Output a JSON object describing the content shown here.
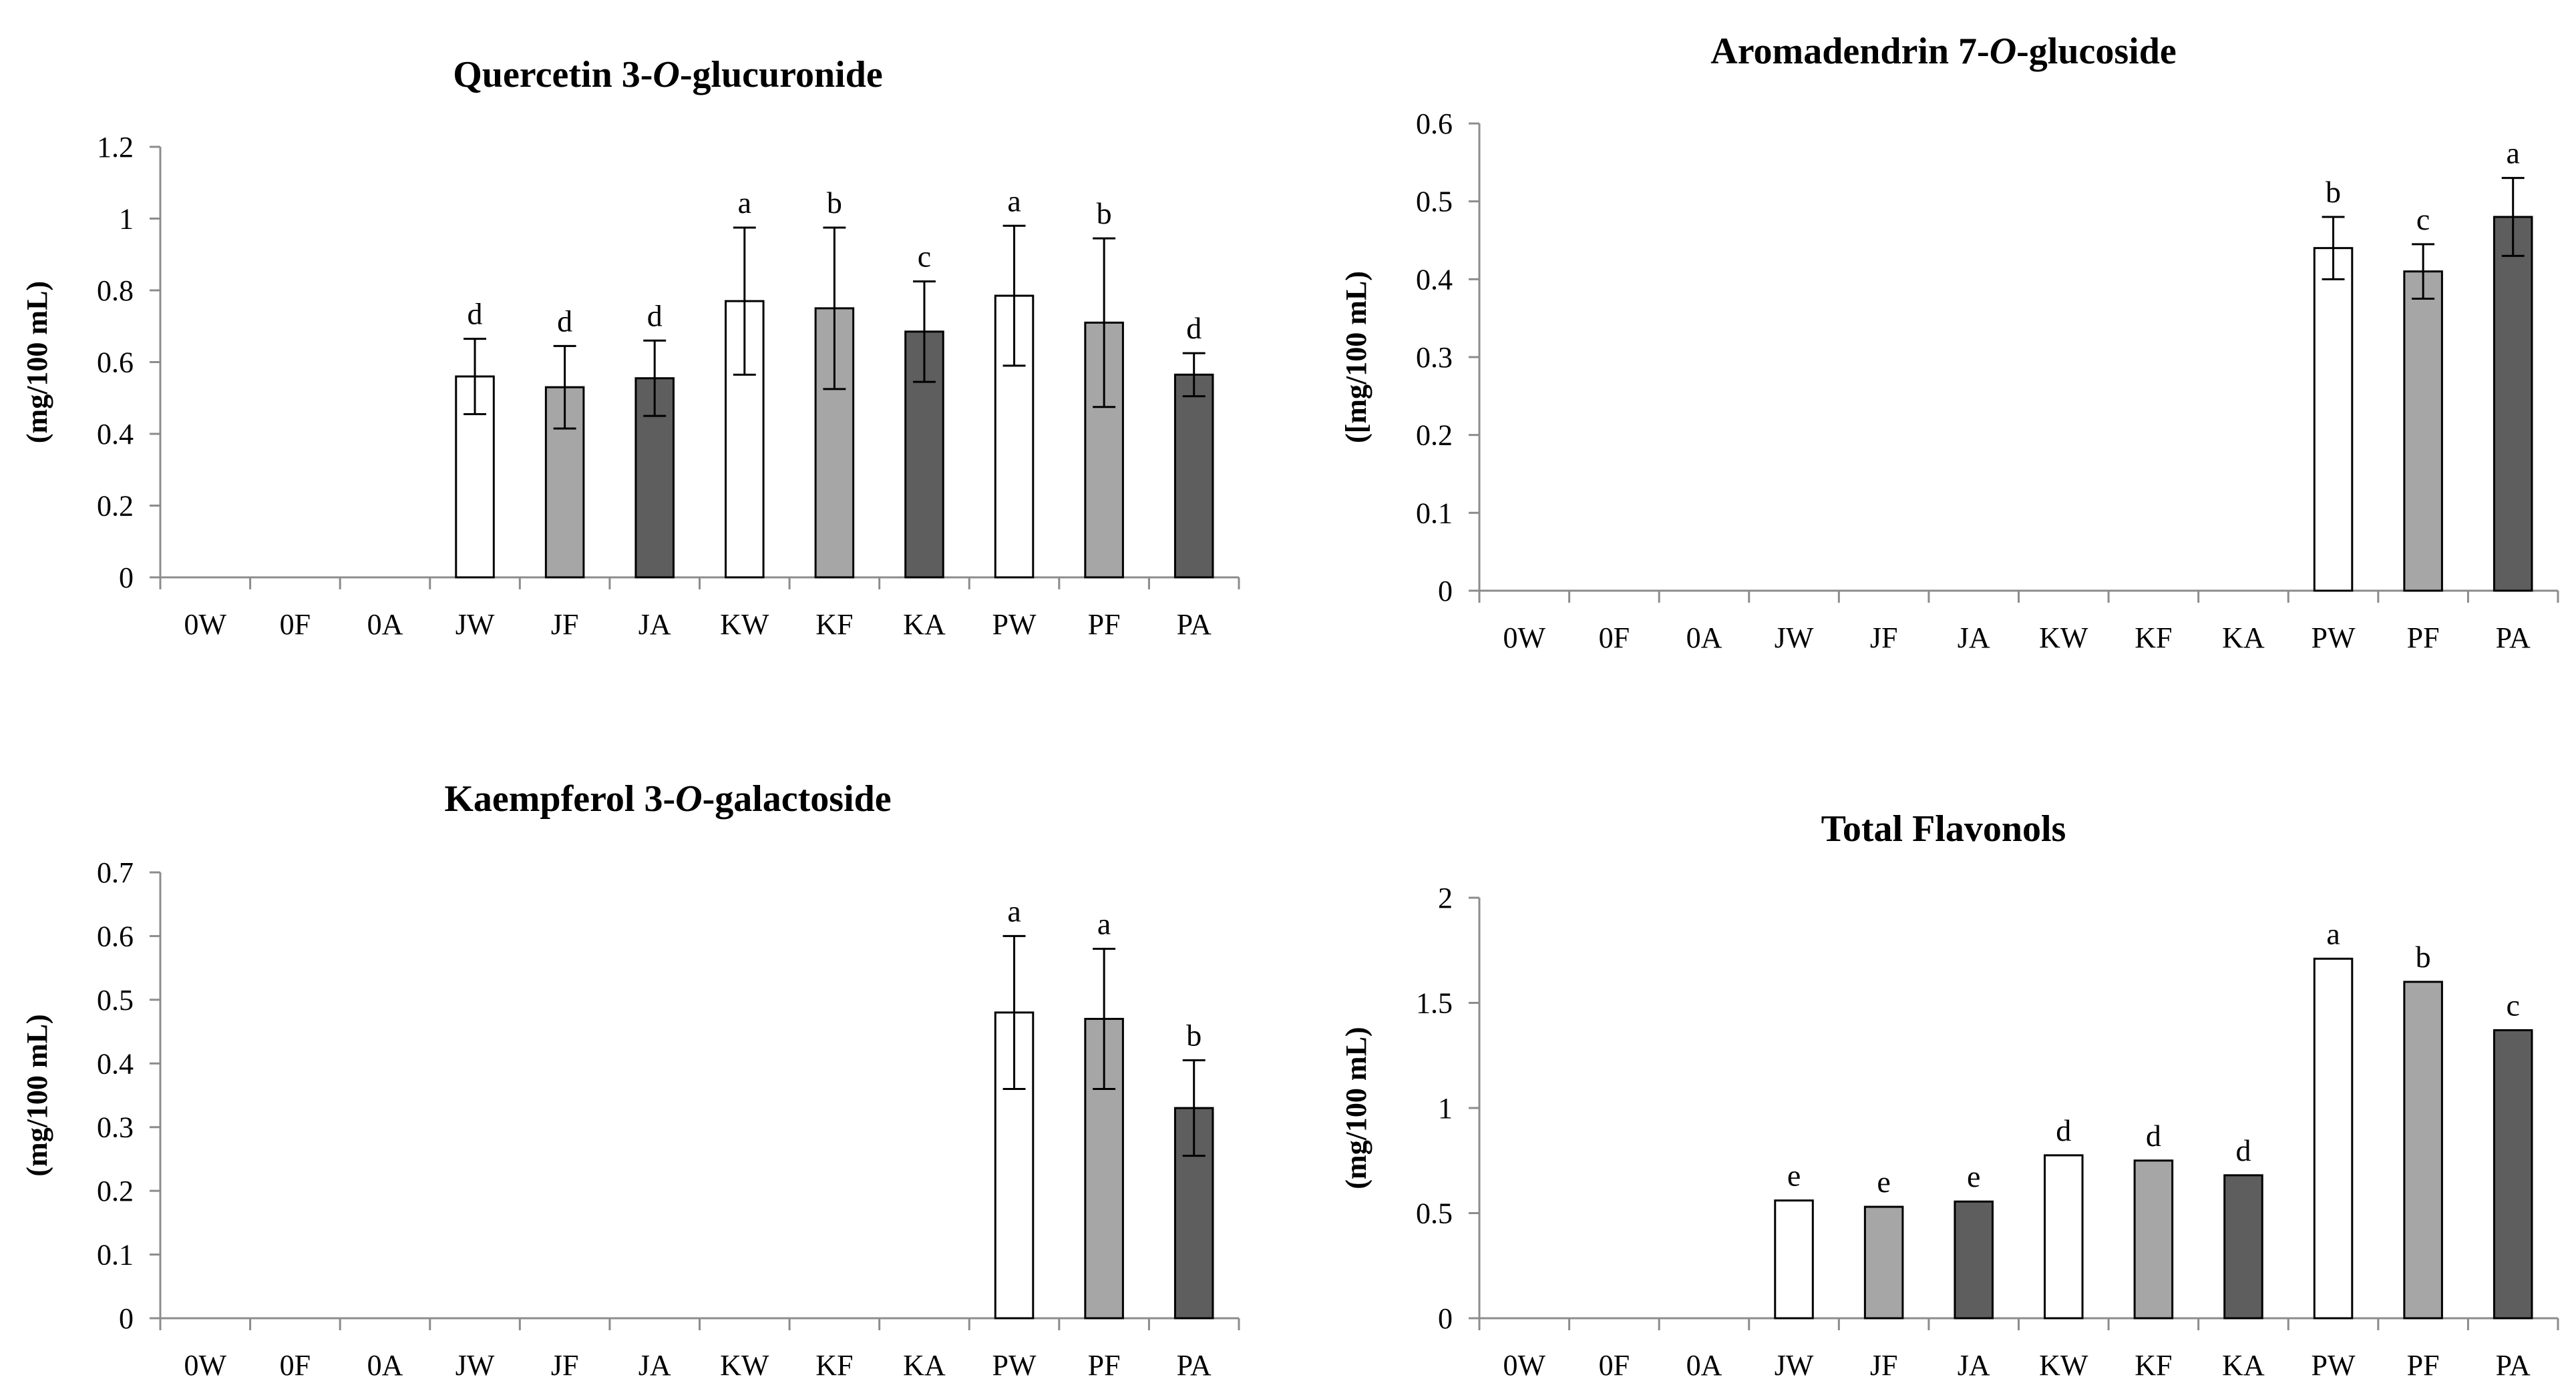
{
  "chart_data": [
    {
      "type": "bar",
      "title": "Quercetin 3-O-glucuronide",
      "title_parts": [
        {
          "text": "Quercetin 3-",
          "italic": false
        },
        {
          "text": "O",
          "italic": true
        },
        {
          "text": "-glucuronide",
          "italic": false
        }
      ],
      "ylabel": "(mg/100 mL)",
      "xlabel": "",
      "ylim": [
        0,
        1.2
      ],
      "yticks": [
        "0",
        "0.2",
        "0.4",
        "0.6",
        "0.8",
        "1",
        "1.2"
      ],
      "categories": [
        "0W",
        "0F",
        "0A",
        "JW",
        "JF",
        "JA",
        "KW",
        "KF",
        "KA",
        "PW",
        "PF",
        "PA"
      ],
      "values": [
        0,
        0,
        0,
        0.56,
        0.53,
        0.555,
        0.77,
        0.75,
        0.685,
        0.785,
        0.71,
        0.565
      ],
      "errors": [
        0,
        0,
        0,
        0.105,
        0.115,
        0.105,
        0.205,
        0.225,
        0.14,
        0.195,
        0.235,
        0.06
      ],
      "letters": [
        "",
        "",
        "",
        "d",
        "d",
        "d",
        "a",
        "b",
        "c",
        "a",
        "b",
        "d"
      ],
      "fill_colors": [
        "#ffffff",
        "#a6a6a6",
        "#5e5e5e"
      ],
      "grid": false
    },
    {
      "type": "bar",
      "title": "Aromadendrin 7-O-glucoside",
      "title_parts": [
        {
          "text": "Aromadendrin 7-",
          "italic": false
        },
        {
          "text": "O",
          "italic": true
        },
        {
          "text": "-glucoside",
          "italic": false
        }
      ],
      "ylabel": "([mg/100 mL)",
      "xlabel": "",
      "ylim": [
        0,
        0.6
      ],
      "yticks": [
        "0",
        "0.1",
        "0.2",
        "0.3",
        "0.4",
        "0.5",
        "0.6"
      ],
      "categories": [
        "0W",
        "0F",
        "0A",
        "JW",
        "JF",
        "JA",
        "KW",
        "KF",
        "KA",
        "PW",
        "PF",
        "PA"
      ],
      "values": [
        0,
        0,
        0,
        0,
        0,
        0,
        0,
        0,
        0,
        0.44,
        0.41,
        0.48
      ],
      "errors": [
        0,
        0,
        0,
        0,
        0,
        0,
        0,
        0,
        0,
        0.04,
        0.035,
        0.05
      ],
      "letters": [
        "",
        "",
        "",
        "",
        "",
        "",
        "",
        "",
        "",
        "b",
        "c",
        "a"
      ],
      "fill_colors": [
        "#ffffff",
        "#a6a6a6",
        "#5e5e5e"
      ],
      "grid": false
    },
    {
      "type": "bar",
      "title": "Kaempferol 3-O-galactoside",
      "title_parts": [
        {
          "text": "Kaempferol 3-",
          "italic": false
        },
        {
          "text": "O",
          "italic": true
        },
        {
          "text": "-galactoside",
          "italic": false
        }
      ],
      "ylabel": "(mg/100 mL)",
      "xlabel": "",
      "ylim": [
        0,
        0.7
      ],
      "yticks": [
        "0",
        "0.1",
        "0.2",
        "0.3",
        "0.4",
        "0.5",
        "0.6",
        "0.7"
      ],
      "categories": [
        "0W",
        "0F",
        "0A",
        "JW",
        "JF",
        "JA",
        "KW",
        "KF",
        "KA",
        "PW",
        "PF",
        "PA"
      ],
      "values": [
        0,
        0,
        0,
        0,
        0,
        0,
        0,
        0,
        0,
        0.48,
        0.47,
        0.33
      ],
      "errors": [
        0,
        0,
        0,
        0,
        0,
        0,
        0,
        0,
        0,
        0.12,
        0.11,
        0.075
      ],
      "letters": [
        "",
        "",
        "",
        "",
        "",
        "",
        "",
        "",
        "",
        "a",
        "a",
        "b"
      ],
      "fill_colors": [
        "#ffffff",
        "#a6a6a6",
        "#5e5e5e"
      ],
      "grid": false
    },
    {
      "type": "bar",
      "title": "Total Flavonols",
      "title_parts": [
        {
          "text": "Total Flavonols",
          "italic": false
        }
      ],
      "ylabel": "(mg/100 mL)",
      "xlabel": "",
      "ylim": [
        0,
        2
      ],
      "yticks": [
        "0",
        "0.5",
        "1",
        "1.5",
        "2"
      ],
      "categories": [
        "0W",
        "0F",
        "0A",
        "JW",
        "JF",
        "JA",
        "KW",
        "KF",
        "KA",
        "PW",
        "PF",
        "PA"
      ],
      "values": [
        0,
        0,
        0,
        0.56,
        0.53,
        0.555,
        0.775,
        0.75,
        0.68,
        1.71,
        1.6,
        1.37
      ],
      "errors": [
        0,
        0,
        0,
        0,
        0,
        0,
        0,
        0,
        0,
        0,
        0,
        0
      ],
      "letters": [
        "",
        "",
        "",
        "e",
        "e",
        "e",
        "d",
        "d",
        "d",
        "a",
        "b",
        "c"
      ],
      "fill_colors": [
        "#ffffff",
        "#a6a6a6",
        "#5e5e5e"
      ],
      "grid": false
    }
  ]
}
